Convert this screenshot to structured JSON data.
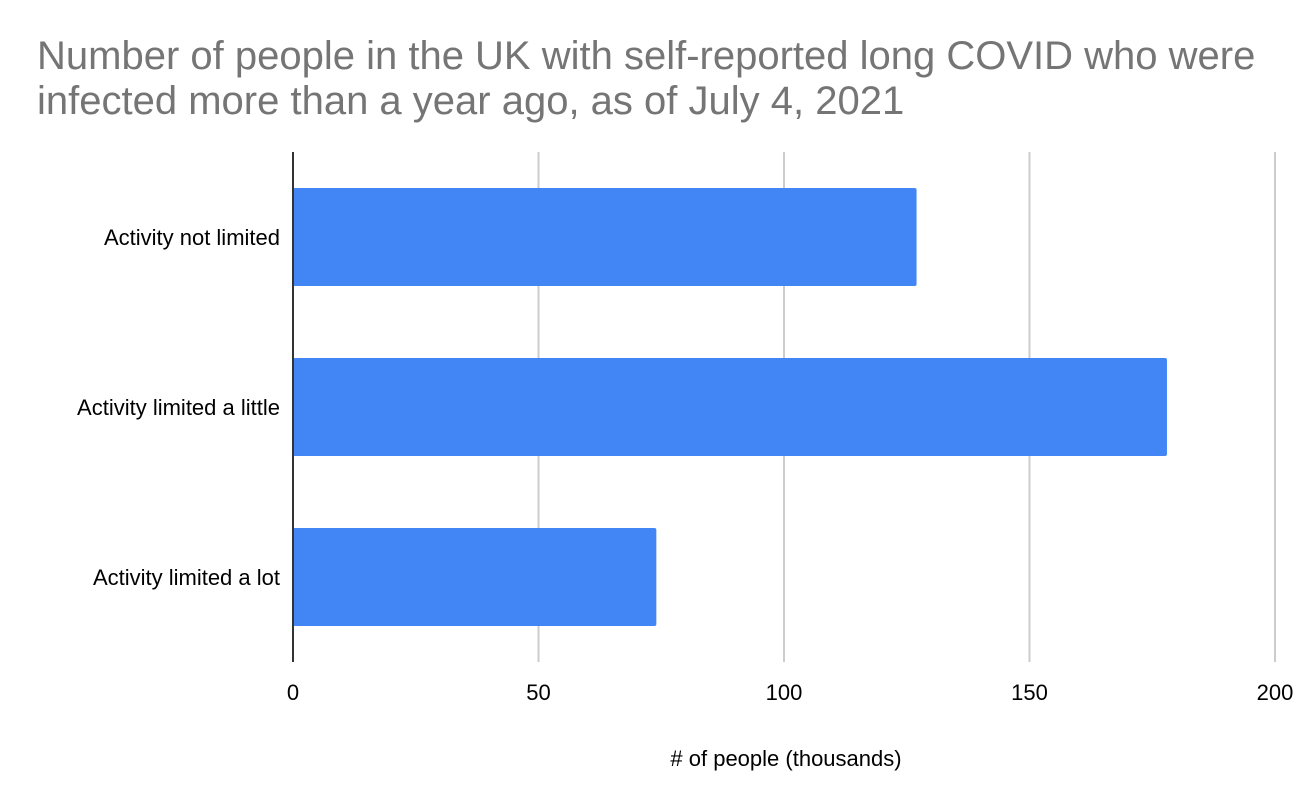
{
  "chart_data": {
    "type": "bar",
    "orientation": "horizontal",
    "title": "Number of people in the UK with self-reported long COVID who were infected more than a year ago, as of July 4, 2021",
    "categories": [
      "Activity not limited",
      "Activity limited a little",
      "Activity limited a lot"
    ],
    "values": [
      127,
      178,
      74
    ],
    "xlabel": "# of people (thousands)",
    "ylabel": "",
    "xlim": [
      0,
      200
    ],
    "xticks": [
      0,
      50,
      100,
      150,
      200
    ],
    "grid": true,
    "legend": "none",
    "bar_color": "#4285f4",
    "grid_color": "#cccccc",
    "title_color": "#757575"
  }
}
